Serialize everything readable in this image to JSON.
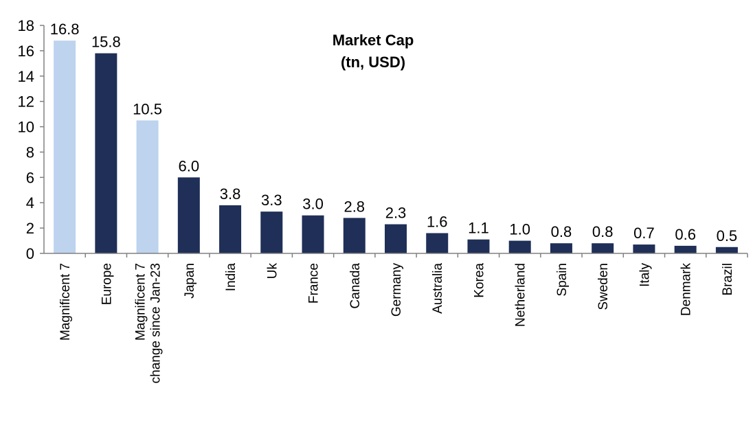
{
  "chart_data": {
    "type": "bar",
    "title": "Market Cap",
    "subtitle": "(tn, USD)",
    "xlabel": "",
    "ylabel": "",
    "ylim": [
      0,
      18
    ],
    "yticks": [
      0,
      2,
      4,
      6,
      8,
      10,
      12,
      14,
      16,
      18
    ],
    "grid": false,
    "legend": "none",
    "categories": [
      [
        "Magnificent 7"
      ],
      [
        "Europe"
      ],
      [
        "Magnificent 7",
        "change since Jan-23"
      ],
      [
        "Japan"
      ],
      [
        "India"
      ],
      [
        "Uk"
      ],
      [
        "France"
      ],
      [
        "Canada"
      ],
      [
        "Germany"
      ],
      [
        "Australia"
      ],
      [
        "Korea"
      ],
      [
        "Netherland"
      ],
      [
        "Spain"
      ],
      [
        "Sweden"
      ],
      [
        "Italy"
      ],
      [
        "Denmark"
      ],
      [
        "Brazil"
      ]
    ],
    "values": [
      16.8,
      15.8,
      10.5,
      6.0,
      3.8,
      3.3,
      3.0,
      2.8,
      2.3,
      1.6,
      1.1,
      1.0,
      0.8,
      0.8,
      0.7,
      0.6,
      0.5
    ],
    "value_labels": [
      "16.8",
      "15.8",
      "10.5",
      "6.0",
      "3.8",
      "3.3",
      "3.0",
      "2.8",
      "2.3",
      "1.6",
      "1.1",
      "1.0",
      "0.8",
      "0.8",
      "0.7",
      "0.6",
      "0.5"
    ],
    "bar_colors": [
      "#bdd3ee",
      "#1f2f57",
      "#bdd3ee",
      "#1f2f57",
      "#1f2f57",
      "#1f2f57",
      "#1f2f57",
      "#1f2f57",
      "#1f2f57",
      "#1f2f57",
      "#1f2f57",
      "#1f2f57",
      "#1f2f57",
      "#1f2f57",
      "#1f2f57",
      "#1f2f57",
      "#1f2f57"
    ]
  }
}
